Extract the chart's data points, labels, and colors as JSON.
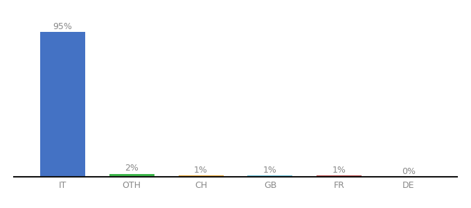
{
  "categories": [
    "IT",
    "OTH",
    "CH",
    "GB",
    "FR",
    "DE"
  ],
  "values": [
    95,
    2,
    1,
    1,
    1,
    0
  ],
  "labels": [
    "95%",
    "2%",
    "1%",
    "1%",
    "1%",
    "0%"
  ],
  "bar_colors": [
    "#4472c4",
    "#3cb54a",
    "#e8a020",
    "#5bbcd6",
    "#b94040",
    "#b94040"
  ],
  "label_fontsize": 9,
  "tick_fontsize": 9,
  "background_color": "#ffffff",
  "ylim": [
    0,
    105
  ],
  "bar_width": 0.65
}
